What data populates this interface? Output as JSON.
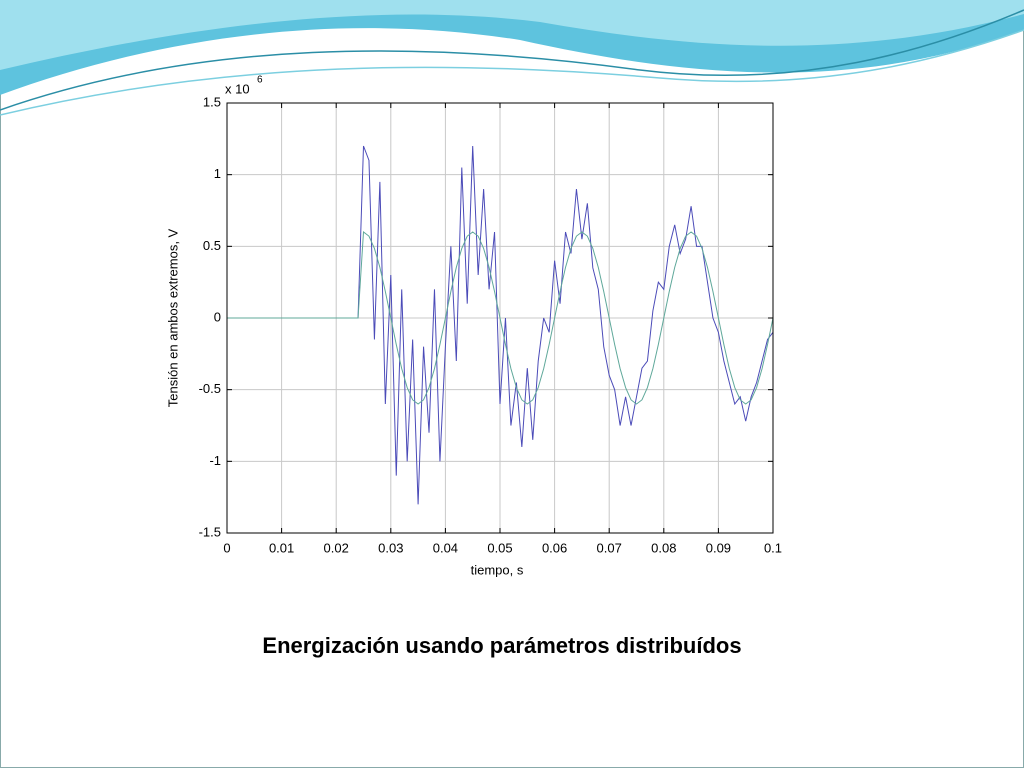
{
  "chart_data": {
    "type": "line",
    "title": "Energización usando parámetros distribuídos",
    "xlabel": "tiempo, s",
    "ylabel": "Tensión en ambos extremos, V",
    "y_multiplier": {
      "base": "x 10",
      "exponent": "6"
    },
    "x": [
      0,
      0.001,
      0.002,
      0.003,
      0.004,
      0.005,
      0.006,
      0.007,
      0.008,
      0.009,
      0.01,
      0.011,
      0.012,
      0.013,
      0.014,
      0.015,
      0.016,
      0.017,
      0.018,
      0.019,
      0.02,
      0.021,
      0.022,
      0.023,
      0.024,
      0.025,
      0.026,
      0.027,
      0.028,
      0.029,
      0.03,
      0.031,
      0.032,
      0.033,
      0.034,
      0.035,
      0.036,
      0.037,
      0.038,
      0.039,
      0.04,
      0.041,
      0.042,
      0.043,
      0.044,
      0.045,
      0.046,
      0.047,
      0.048,
      0.049,
      0.05,
      0.051,
      0.052,
      0.053,
      0.054,
      0.055,
      0.056,
      0.057,
      0.058,
      0.059,
      0.06,
      0.061,
      0.062,
      0.063,
      0.064,
      0.065,
      0.066,
      0.067,
      0.068,
      0.069,
      0.07,
      0.071,
      0.072,
      0.073,
      0.074,
      0.075,
      0.076,
      0.077,
      0.078,
      0.079,
      0.08,
      0.081,
      0.082,
      0.083,
      0.084,
      0.085,
      0.086,
      0.087,
      0.088,
      0.089,
      0.09,
      0.091,
      0.092,
      0.093,
      0.094,
      0.095,
      0.096,
      0.097,
      0.098,
      0.099,
      0.1
    ],
    "series": [
      {
        "color": "#4b4bb8",
        "values": [
          0,
          0,
          0,
          0,
          0,
          0,
          0,
          0,
          0,
          0,
          0,
          0,
          0,
          0,
          0,
          0,
          0,
          0,
          0,
          0,
          0,
          0,
          0,
          0,
          0,
          1.2,
          1.1,
          -0.15,
          0.95,
          -0.6,
          0.3,
          -1.1,
          0.2,
          -1.0,
          -0.15,
          -1.3,
          -0.2,
          -0.8,
          0.2,
          -1.0,
          -0.2,
          0.5,
          -0.3,
          1.05,
          0.1,
          1.2,
          0.3,
          0.9,
          0.2,
          0.6,
          -0.6,
          0.0,
          -0.75,
          -0.45,
          -0.9,
          -0.35,
          -0.85,
          -0.3,
          0.0,
          -0.1,
          0.4,
          0.1,
          0.6,
          0.45,
          0.9,
          0.55,
          0.8,
          0.35,
          0.2,
          -0.2,
          -0.4,
          -0.5,
          -0.75,
          -0.55,
          -0.75,
          -0.55,
          -0.35,
          -0.3,
          0.05,
          0.25,
          0.2,
          0.5,
          0.65,
          0.45,
          0.55,
          0.78,
          0.5,
          0.5,
          0.25,
          0.0,
          -0.1,
          -0.3,
          -0.45,
          -0.6,
          -0.55,
          -0.72,
          -0.55,
          -0.45,
          -0.3,
          -0.15,
          -0.1
        ]
      },
      {
        "color": "#5fa89a",
        "values": [
          0,
          0,
          0,
          0,
          0,
          0,
          0,
          0,
          0,
          0,
          0,
          0,
          0,
          0,
          0,
          0,
          0,
          0,
          0,
          0,
          0,
          0,
          0,
          0,
          0,
          0.6,
          0.571,
          0.485,
          0.353,
          0.185,
          0,
          -0.185,
          -0.353,
          -0.485,
          -0.571,
          -0.6,
          -0.571,
          -0.485,
          -0.353,
          -0.185,
          0,
          0.185,
          0.353,
          0.485,
          0.571,
          0.6,
          0.571,
          0.485,
          0.353,
          0.185,
          0,
          -0.185,
          -0.353,
          -0.485,
          -0.571,
          -0.6,
          -0.571,
          -0.485,
          -0.353,
          -0.185,
          0,
          0.185,
          0.353,
          0.485,
          0.571,
          0.6,
          0.571,
          0.485,
          0.353,
          0.185,
          0,
          -0.185,
          -0.353,
          -0.485,
          -0.571,
          -0.6,
          -0.571,
          -0.485,
          -0.353,
          -0.185,
          0,
          0.185,
          0.353,
          0.485,
          0.571,
          0.6,
          0.571,
          0.485,
          0.353,
          0.185,
          0,
          -0.185,
          -0.353,
          -0.485,
          -0.571,
          -0.6,
          -0.571,
          -0.485,
          -0.353,
          -0.185,
          0
        ]
      }
    ],
    "xlim": [
      0,
      0.1
    ],
    "xticks": [
      0,
      0.01,
      0.02,
      0.03,
      0.04,
      0.05,
      0.06,
      0.07,
      0.08,
      0.09,
      0.1
    ],
    "ylim": [
      -1.5,
      1.5
    ],
    "yticks": [
      -1.5,
      -1,
      -0.5,
      0,
      0.5,
      1,
      1.5
    ],
    "grid": true
  }
}
